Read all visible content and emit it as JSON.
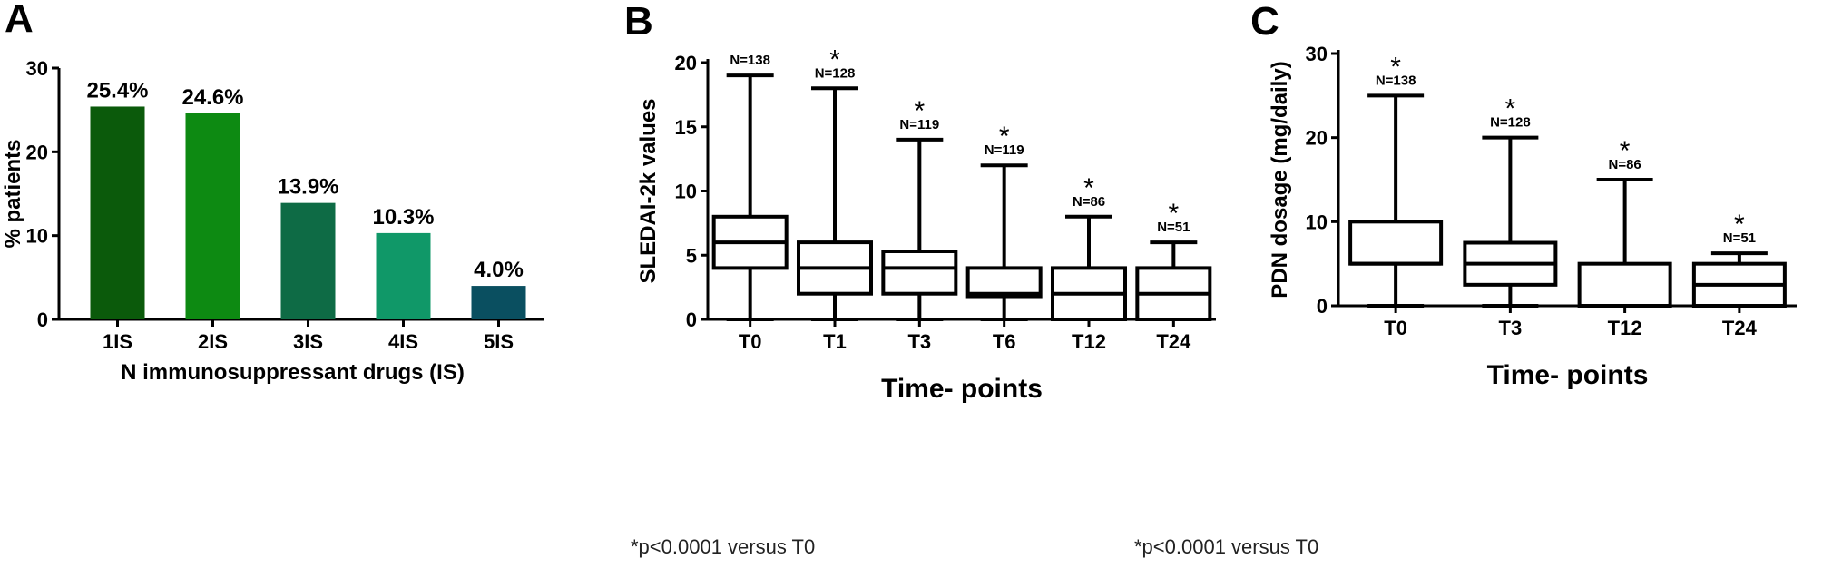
{
  "chart_data": [
    {
      "id": "A",
      "panel_letter": "A",
      "type": "bar",
      "title": "",
      "xlabel": "N immunosuppressant drugs (IS)",
      "ylabel": "% patients",
      "ylim": [
        0,
        30
      ],
      "yticks": [
        0,
        10,
        20,
        30
      ],
      "categories": [
        "1IS",
        "2IS",
        "3IS",
        "4IS",
        "5IS"
      ],
      "values": [
        25.4,
        24.6,
        13.9,
        10.3,
        4.0
      ],
      "data_labels": [
        "25.4%",
        "24.6%",
        "13.9%",
        "10.3%",
        "4.0%"
      ],
      "colors": [
        "#0b5a0b",
        "#0d8a12",
        "#0e6b45",
        "#109868",
        "#0a4f60"
      ],
      "grid": false
    },
    {
      "id": "B",
      "panel_letter": "B",
      "type": "box",
      "title": "",
      "xlabel": "Time- points",
      "ylabel": "SLEDAI-2k values",
      "ylim": [
        0,
        20
      ],
      "yticks": [
        0,
        5,
        10,
        15,
        20
      ],
      "categories": [
        "T0",
        "T1",
        "T3",
        "T6",
        "T12",
        "T24"
      ],
      "boxes": [
        {
          "min": 0,
          "q1": 4,
          "median": 6,
          "q3": 8,
          "max": 19
        },
        {
          "min": 0,
          "q1": 2,
          "median": 4,
          "q3": 6,
          "max": 18
        },
        {
          "min": 0,
          "q1": 2,
          "median": 4,
          "q3": 5.3,
          "max": 14
        },
        {
          "min": 0,
          "q1": 1.8,
          "median": 2,
          "q3": 4,
          "max": 12
        },
        {
          "min": 0,
          "q1": 0,
          "median": 2,
          "q3": 4,
          "max": 8
        },
        {
          "min": 0,
          "q1": 0,
          "median": 2,
          "q3": 4,
          "max": 6
        }
      ],
      "n_labels": [
        "N=138",
        "N=128",
        "N=119",
        "N=119",
        "N=86",
        "N=51"
      ],
      "significant": [
        false,
        true,
        true,
        true,
        true,
        true
      ],
      "sig_marker": "*",
      "footnote": "*p<0.0001 versus T0",
      "grid": false
    },
    {
      "id": "C",
      "panel_letter": "C",
      "type": "box",
      "title": "",
      "xlabel": "Time- points",
      "ylabel": "PDN dosage (mg/daily)",
      "ylim": [
        0,
        30
      ],
      "yticks": [
        0,
        10,
        20,
        30
      ],
      "categories": [
        "T0",
        "T3",
        "T12",
        "T24"
      ],
      "boxes": [
        {
          "min": 0,
          "q1": 5,
          "median": 5,
          "q3": 10,
          "max": 25
        },
        {
          "min": 0,
          "q1": 2.5,
          "median": 5,
          "q3": 7.5,
          "max": 20
        },
        {
          "min": 0,
          "q1": 0,
          "median": 0,
          "q3": 5,
          "max": 15
        },
        {
          "min": 0,
          "q1": 0,
          "median": 2.5,
          "q3": 5,
          "max": 6.25
        }
      ],
      "n_labels": [
        "N=138",
        "N=128",
        "N=86",
        "N=51"
      ],
      "significant": [
        true,
        true,
        true,
        true
      ],
      "sig_marker": "*",
      "footnote": "*p<0.0001 versus T0",
      "grid": false
    }
  ]
}
